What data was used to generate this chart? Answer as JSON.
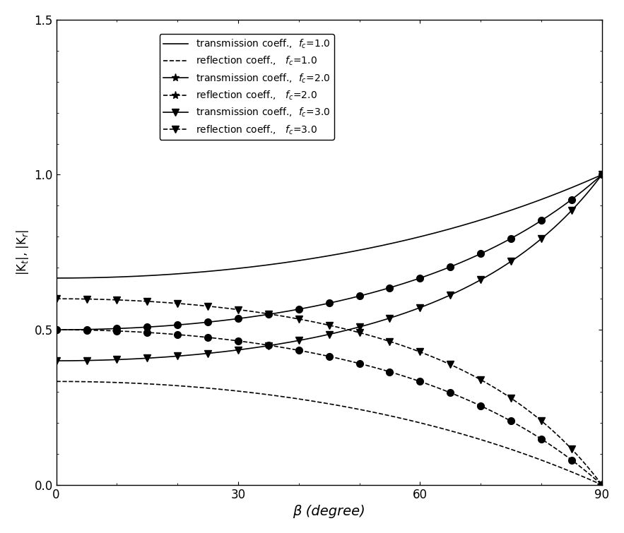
{
  "fc_values": [
    1.0,
    2.0,
    3.0
  ],
  "xlabel": "β (degree)",
  "ylabel": "|K$_t$|, |K$_r$|",
  "xlim": [
    0,
    90
  ],
  "ylim": [
    0.0,
    1.5
  ],
  "yticks": [
    0.0,
    0.5,
    1.0,
    1.5
  ],
  "xticks": [
    0,
    30,
    60,
    90
  ],
  "legend_labels": [
    "transmission coeff.,  $f_c$=1.0",
    "reflection coeff.,   $f_c$=1.0",
    "transmission coeff.,  $f_c$=2.0",
    "reflection coeff.,   $f_c$=2.0",
    "transmission coeff.,  $f_c$=3.0",
    "reflection coeff.,   $f_c$=3.0"
  ],
  "colors": [
    "black",
    "black",
    "black",
    "black",
    "black",
    "black"
  ],
  "background_color": "#ffffff",
  "marker_every": 5
}
